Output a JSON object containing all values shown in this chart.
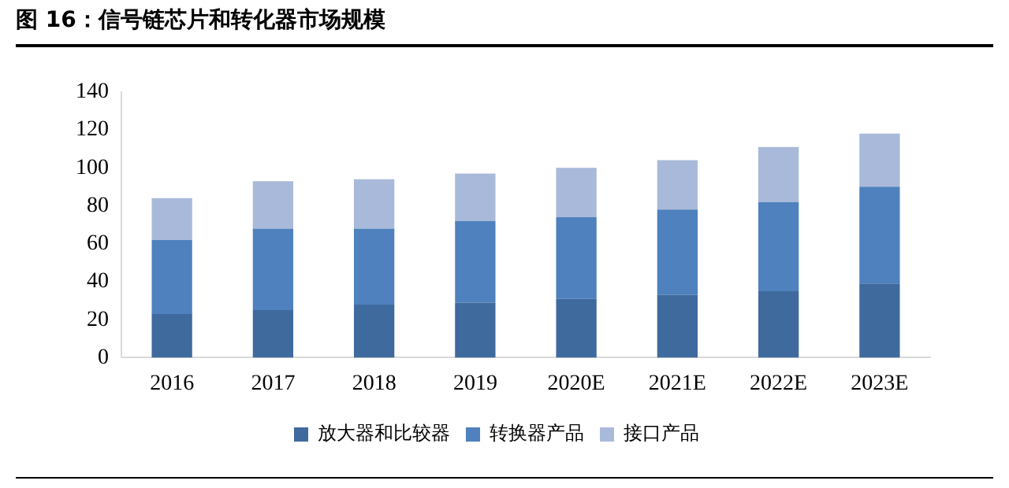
{
  "chart_data": {
    "type": "bar",
    "title": "图 16：信号链芯片和转化器市场规模",
    "stacked": true,
    "categories": [
      "2016",
      "2017",
      "2018",
      "2019",
      "2020E",
      "2021E",
      "2022E",
      "2023E"
    ],
    "series": [
      {
        "name": "放大器和比较器",
        "color": "#3f6a9e",
        "values": [
          23,
          25,
          28,
          29,
          31,
          33,
          35,
          39
        ]
      },
      {
        "name": "转换器产品",
        "color": "#4e81bd",
        "values": [
          39,
          43,
          40,
          43,
          43,
          45,
          47,
          51
        ]
      },
      {
        "name": "接口产品",
        "color": "#a9b9d9",
        "values": [
          22,
          25,
          26,
          25,
          26,
          26,
          29,
          28
        ]
      }
    ],
    "ylim": [
      0,
      140
    ],
    "yticks": [
      0,
      20,
      40,
      60,
      80,
      100,
      120,
      140
    ],
    "grid": false,
    "legend": "bottom"
  }
}
